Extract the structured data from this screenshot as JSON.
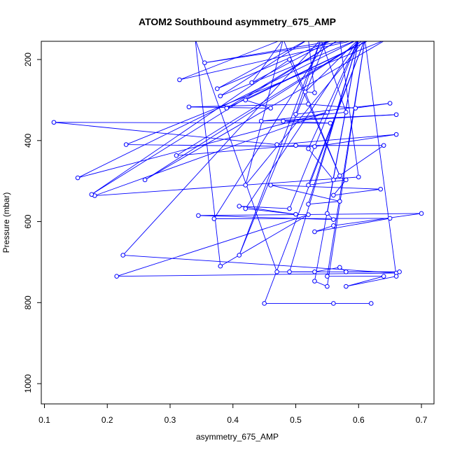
{
  "chart_data": {
    "type": "line",
    "title": "ATOM2 Southbound asymmetry_675_AMP",
    "xlabel": "asymmetry_675_AMP",
    "ylabel": "Pressure (mbar)",
    "xlim": [
      0.095,
      0.72
    ],
    "ylim": [
      1050,
      155
    ],
    "y_reversed": true,
    "grid": false,
    "x_ticks": [
      0.1,
      0.2,
      0.3,
      0.4,
      0.5,
      0.6,
      0.7
    ],
    "x_tick_labels": [
      "0.1",
      "0.2",
      "0.3",
      "0.4",
      "0.5",
      "0.6",
      "0.7"
    ],
    "y_ticks": [
      200,
      400,
      600,
      800,
      1000
    ],
    "y_tick_labels": [
      "200",
      "400",
      "600",
      "800",
      "1000"
    ],
    "colors": {
      "series": "#0000ff",
      "axis": "#000000"
    },
    "series": [
      {
        "points": [
          [
            0.575,
            150
          ],
          [
            0.355,
            208
          ],
          [
            0.6,
            150
          ],
          [
            0.315,
            250
          ],
          [
            0.48,
            150
          ],
          [
            0.43,
            257
          ],
          [
            0.56,
            150
          ],
          [
            0.375,
            272
          ],
          [
            0.52,
            150
          ],
          [
            0.53,
            282
          ],
          [
            0.515,
            280
          ],
          [
            0.6,
            150
          ],
          [
            0.38,
            290
          ],
          [
            0.52,
            150
          ],
          [
            0.48,
            150
          ],
          [
            0.45,
            150
          ],
          [
            0.57,
            150
          ],
          [
            0.39,
            320
          ],
          [
            0.62,
            150
          ],
          [
            0.42,
            300
          ],
          [
            0.46,
            320
          ],
          [
            0.33,
            317
          ],
          [
            0.52,
            310
          ],
          [
            0.595,
            320
          ],
          [
            0.65,
            308
          ],
          [
            0.5,
            335
          ],
          [
            0.54,
            150
          ],
          [
            0.58,
            330
          ],
          [
            0.445,
            352
          ],
          [
            0.66,
            336
          ],
          [
            0.48,
            352
          ],
          [
            0.555,
            357
          ],
          [
            0.115,
            355
          ],
          [
            0.47,
            410
          ],
          [
            0.66,
            385
          ],
          [
            0.53,
            415
          ],
          [
            0.23,
            410
          ],
          [
            0.645,
            150
          ],
          [
            0.26,
            497
          ],
          [
            0.61,
            150
          ],
          [
            0.31,
            437
          ],
          [
            0.5,
            412
          ],
          [
            0.64,
            412
          ],
          [
            0.56,
            497
          ],
          [
            0.52,
            420
          ],
          [
            0.6,
            150
          ],
          [
            0.153,
            492
          ],
          [
            0.55,
            330
          ],
          [
            0.18,
            536
          ],
          [
            0.6,
            490
          ],
          [
            0.57,
            150
          ],
          [
            0.175,
            533
          ],
          [
            0.49,
            200
          ],
          [
            0.57,
            487
          ],
          [
            0.48,
            150
          ],
          [
            0.42,
            510
          ],
          [
            0.61,
            150
          ],
          [
            0.52,
            510
          ],
          [
            0.58,
            497
          ],
          [
            0.56,
            535
          ],
          [
            0.635,
            520
          ],
          [
            0.46,
            510
          ],
          [
            0.57,
            550
          ],
          [
            0.52,
            557
          ],
          [
            0.6,
            150
          ],
          [
            0.49,
            568
          ],
          [
            0.41,
            562
          ],
          [
            0.5,
            582
          ],
          [
            0.42,
            568
          ],
          [
            0.6,
            150
          ],
          [
            0.55,
            580
          ],
          [
            0.56,
            595
          ],
          [
            0.345,
            585
          ],
          [
            0.7,
            580
          ],
          [
            0.56,
            610
          ],
          [
            0.53,
            625
          ],
          [
            0.65,
            592
          ],
          [
            0.37,
            593
          ],
          [
            0.55,
            150
          ],
          [
            0.41,
            683
          ],
          [
            0.54,
            150
          ],
          [
            0.225,
            683
          ],
          [
            0.66,
            727
          ],
          [
            0.215,
            735
          ],
          [
            0.52,
            583
          ],
          [
            0.38,
            710
          ],
          [
            0.34,
            150
          ],
          [
            0.47,
            724
          ],
          [
            0.53,
            724
          ],
          [
            0.57,
            713
          ],
          [
            0.58,
            724
          ],
          [
            0.665,
            724
          ],
          [
            0.49,
            724
          ],
          [
            0.6,
            150
          ],
          [
            0.53,
            747
          ],
          [
            0.55,
            760
          ],
          [
            0.61,
            150
          ],
          [
            0.55,
            735
          ],
          [
            0.64,
            735
          ],
          [
            0.58,
            760
          ],
          [
            0.66,
            735
          ],
          [
            0.61,
            150
          ],
          [
            0.45,
            802
          ],
          [
            0.56,
            802
          ],
          [
            0.62,
            802
          ]
        ]
      }
    ]
  }
}
